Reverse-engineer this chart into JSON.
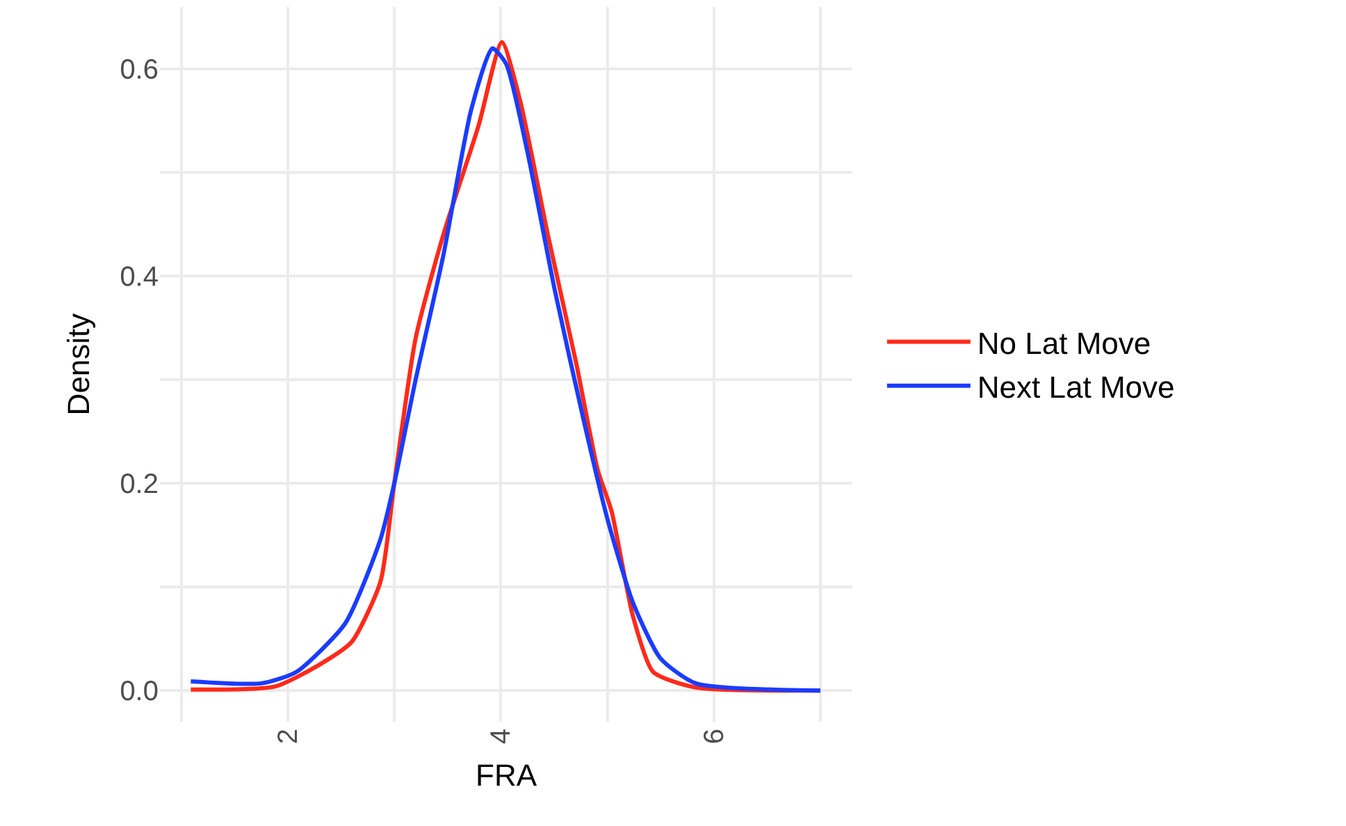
{
  "chart_data": {
    "type": "line",
    "xlabel": "FRA",
    "ylabel": "Density",
    "xlim": [
      0.8,
      7.3
    ],
    "ylim": [
      -0.03,
      0.66
    ],
    "xticks": [
      {
        "value": 1,
        "label": null
      },
      2,
      {
        "value": 3,
        "label": null
      },
      4,
      {
        "value": 5,
        "label": null
      },
      6,
      {
        "value": 7,
        "label": null
      }
    ],
    "yticks": [
      {
        "value": 0,
        "label": "0.0"
      },
      {
        "value": 0.1,
        "label": null
      },
      0.2,
      {
        "value": 0.3,
        "label": null
      },
      0.4,
      {
        "value": 0.5,
        "label": null
      },
      0.6
    ],
    "grid": true,
    "legend": "right",
    "marker": "none",
    "line_style": "solid",
    "series": [
      {
        "name": "No Lat Move",
        "color": "#ff2a1a",
        "x": [
          1.09,
          1.88,
          2.28,
          2.6,
          2.87,
          3.0,
          3.2,
          3.46,
          3.79,
          4.01,
          4.18,
          4.45,
          4.71,
          4.91,
          5.04,
          5.24,
          5.43,
          5.83,
          7.0
        ],
        "values": [
          0.001,
          0.004,
          0.024,
          0.047,
          0.105,
          0.2,
          0.34,
          0.44,
          0.545,
          0.626,
          0.57,
          0.436,
          0.315,
          0.213,
          0.173,
          0.072,
          0.018,
          0.003,
          0.0
        ]
      },
      {
        "name": "Next Lat Move",
        "color": "#1a3cff",
        "x": [
          1.09,
          1.75,
          2.08,
          2.54,
          2.87,
          3.0,
          3.2,
          3.46,
          3.72,
          3.92,
          4.05,
          4.25,
          4.51,
          4.78,
          5.0,
          5.24,
          5.5,
          5.83,
          7.0
        ],
        "values": [
          0.009,
          0.007,
          0.018,
          0.065,
          0.146,
          0.2,
          0.3,
          0.42,
          0.56,
          0.62,
          0.605,
          0.52,
          0.385,
          0.26,
          0.166,
          0.085,
          0.031,
          0.007,
          0.0
        ]
      }
    ]
  }
}
